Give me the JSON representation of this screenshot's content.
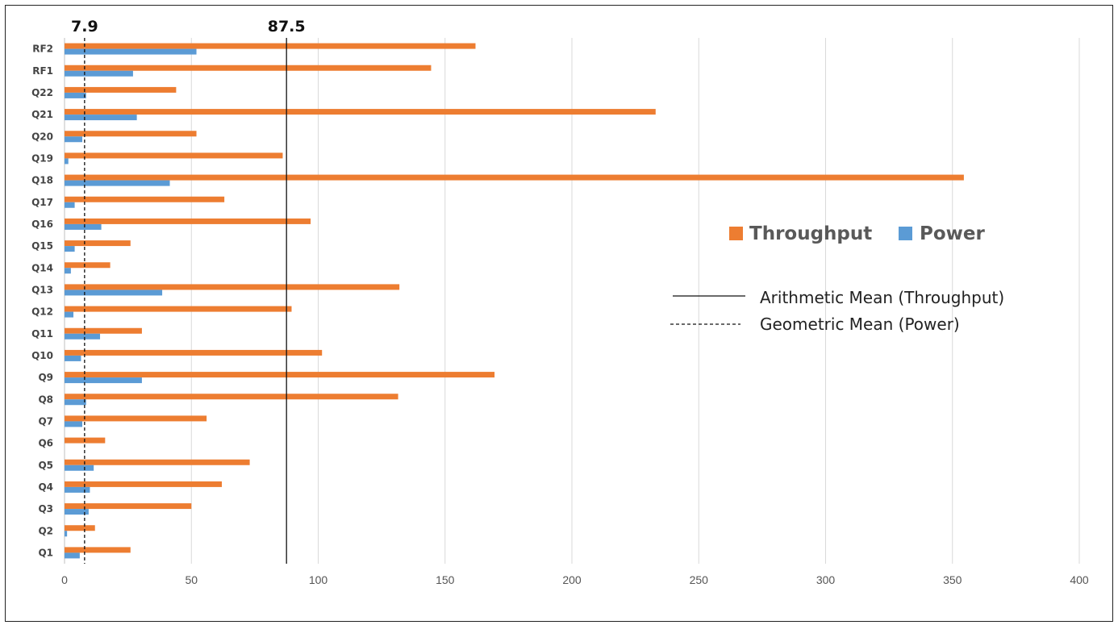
{
  "chart_data": {
    "type": "bar",
    "orientation": "horizontal",
    "categories": [
      "Q1",
      "Q2",
      "Q3",
      "Q4",
      "Q5",
      "Q6",
      "Q7",
      "Q8",
      "Q9",
      "Q10",
      "Q11",
      "Q12",
      "Q13",
      "Q14",
      "Q15",
      "Q16",
      "Q17",
      "Q18",
      "Q19",
      "Q20",
      "Q21",
      "Q22",
      "RF1",
      "RF2"
    ],
    "series": [
      {
        "name": "Throughput",
        "color": "#ED7D31",
        "values": [
          26,
          12,
          50,
          62,
          73,
          16,
          56,
          131.5,
          169.5,
          101.5,
          30.5,
          89.5,
          132,
          18,
          26,
          97,
          63,
          354.5,
          86,
          52,
          233,
          44,
          144.5,
          162
        ]
      },
      {
        "name": "Power",
        "color": "#5B9BD5",
        "values": [
          6,
          1,
          9.5,
          10,
          11.5,
          0,
          7,
          8.5,
          30.5,
          6.5,
          14,
          3.5,
          38.5,
          2.5,
          4,
          14.5,
          4,
          41.5,
          1.5,
          7,
          28.5,
          8.5,
          27,
          52
        ]
      }
    ],
    "reference_lines": [
      {
        "label": "87.5",
        "value": 87.5,
        "style": "solid",
        "legend": "Arithmetic Mean (Throughput)"
      },
      {
        "label": "7.9",
        "value": 7.9,
        "style": "dashed",
        "legend": "Geometric Mean (Power)"
      }
    ],
    "xlim": [
      0,
      400
    ],
    "xticks": [
      "0",
      "50",
      "100",
      "150",
      "200",
      "250",
      "300",
      "350",
      "400"
    ],
    "grid": true,
    "legend_position": "right"
  }
}
